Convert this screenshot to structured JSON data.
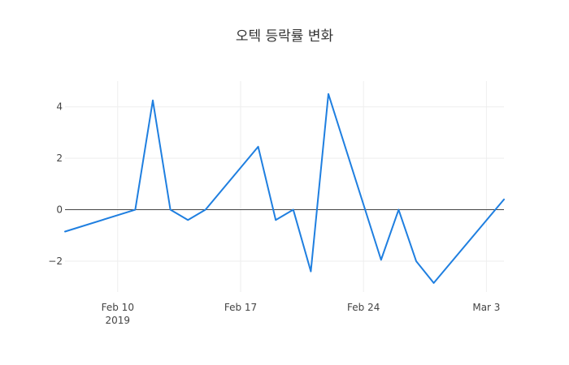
{
  "chart_data": {
    "type": "line",
    "title": "오텍 등락률 변화",
    "xlabel": "",
    "ylabel": "",
    "x_type": "date",
    "x_range": [
      "2019-02-07",
      "2019-03-04"
    ],
    "ylim": [
      -3.2,
      5.0
    ],
    "x_ticks": [
      {
        "date": "2019-02-10",
        "label": "Feb 10",
        "sublabel": "2019"
      },
      {
        "date": "2019-02-17",
        "label": "Feb 17",
        "sublabel": ""
      },
      {
        "date": "2019-02-24",
        "label": "Feb 24",
        "sublabel": ""
      },
      {
        "date": "2019-03-03",
        "label": "Mar 3",
        "sublabel": ""
      }
    ],
    "y_ticks": [
      {
        "value": -2,
        "label": "−2"
      },
      {
        "value": 0,
        "label": "0"
      },
      {
        "value": 2,
        "label": "2"
      },
      {
        "value": 4,
        "label": "4"
      }
    ],
    "grid": true,
    "zero_line": true,
    "series": [
      {
        "color": "#1f7fe0",
        "points": [
          {
            "x": "2019-02-07",
            "y": -0.85
          },
          {
            "x": "2019-02-11",
            "y": 0.0
          },
          {
            "x": "2019-02-12",
            "y": 4.25
          },
          {
            "x": "2019-02-13",
            "y": 0.0
          },
          {
            "x": "2019-02-14",
            "y": -0.4
          },
          {
            "x": "2019-02-15",
            "y": 0.0
          },
          {
            "x": "2019-02-18",
            "y": 2.45
          },
          {
            "x": "2019-02-19",
            "y": -0.4
          },
          {
            "x": "2019-02-20",
            "y": 0.0
          },
          {
            "x": "2019-02-21",
            "y": -2.4
          },
          {
            "x": "2019-02-22",
            "y": 4.5
          },
          {
            "x": "2019-02-25",
            "y": -1.95
          },
          {
            "x": "2019-02-26",
            "y": 0.0
          },
          {
            "x": "2019-02-27",
            "y": -2.0
          },
          {
            "x": "2019-02-28",
            "y": -2.85
          },
          {
            "x": "2019-03-04",
            "y": 0.4
          }
        ]
      }
    ]
  }
}
